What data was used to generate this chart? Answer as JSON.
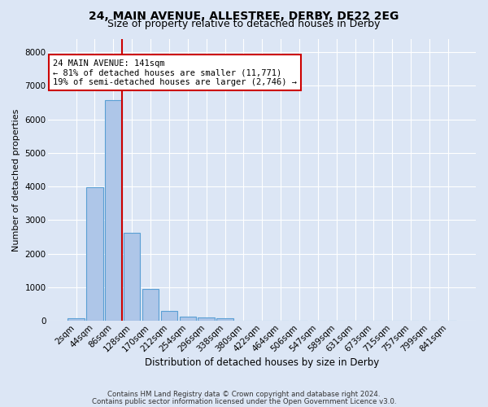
{
  "title": "24, MAIN AVENUE, ALLESTREE, DERBY, DE22 2EG",
  "subtitle": "Size of property relative to detached houses in Derby",
  "xlabel": "Distribution of detached houses by size in Derby",
  "ylabel": "Number of detached properties",
  "footer_line1": "Contains HM Land Registry data © Crown copyright and database right 2024.",
  "footer_line2": "Contains public sector information licensed under the Open Government Licence v3.0.",
  "bar_labels": [
    "2sqm",
    "44sqm",
    "86sqm",
    "128sqm",
    "170sqm",
    "212sqm",
    "254sqm",
    "296sqm",
    "338sqm",
    "380sqm",
    "422sqm",
    "464sqm",
    "506sqm",
    "547sqm",
    "589sqm",
    "631sqm",
    "673sqm",
    "715sqm",
    "757sqm",
    "799sqm",
    "841sqm"
  ],
  "bar_values": [
    75,
    3980,
    6580,
    2620,
    950,
    310,
    135,
    110,
    80,
    0,
    0,
    0,
    0,
    0,
    0,
    0,
    0,
    0,
    0,
    0,
    0
  ],
  "bar_color": "#aec6e8",
  "bar_edgecolor": "#5a9fd4",
  "annotation_text": "24 MAIN AVENUE: 141sqm\n← 81% of detached houses are smaller (11,771)\n19% of semi-detached houses are larger (2,746) →",
  "vline_color": "#cc0000",
  "annotation_box_edgecolor": "#cc0000",
  "annotation_box_facecolor": "#ffffff",
  "ylim": [
    0,
    8400
  ],
  "yticks": [
    0,
    1000,
    2000,
    3000,
    4000,
    5000,
    6000,
    7000,
    8000
  ],
  "background_color": "#dce6f5",
  "plot_bg_color": "#dce6f5",
  "grid_color": "#ffffff",
  "title_fontsize": 10,
  "subtitle_fontsize": 9,
  "ylabel_fontsize": 8,
  "xlabel_fontsize": 8.5,
  "tick_fontsize": 7.5,
  "footer_fontsize": 6.2,
  "annotation_fontsize": 7.5
}
